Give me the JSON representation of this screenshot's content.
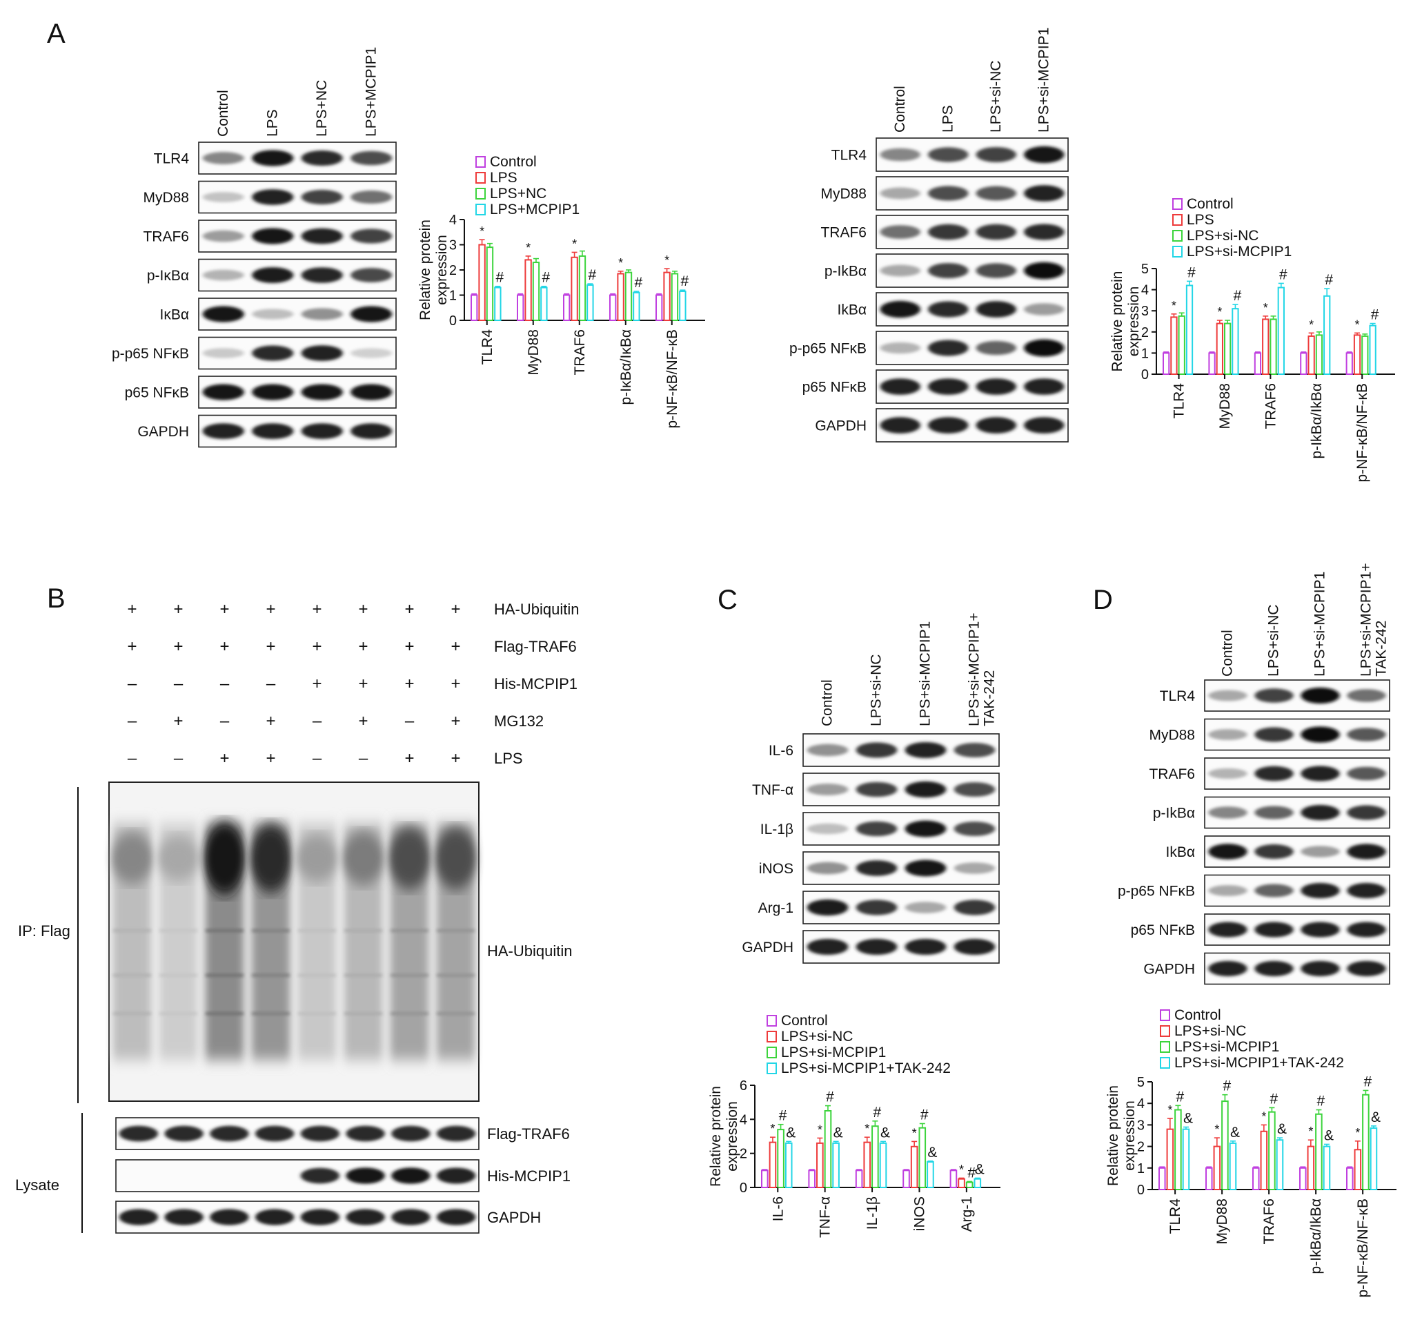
{
  "panels": {
    "A": "A",
    "B": "B",
    "C": "C",
    "D": "D"
  },
  "blot_A1": {
    "lanes": [
      "Control",
      "LPS",
      "LPS+NC",
      "LPS+MCPIP1"
    ],
    "rows": [
      "TLR4",
      "MyD88",
      "TRAF6",
      "p-IκBα",
      "IκBα",
      "p-p65 NFκB",
      "p65 NFκB",
      "GAPDH"
    ],
    "intensity": [
      [
        0.45,
        0.95,
        0.85,
        0.7
      ],
      [
        0.18,
        0.9,
        0.75,
        0.55
      ],
      [
        0.35,
        0.95,
        0.9,
        0.75
      ],
      [
        0.25,
        0.92,
        0.88,
        0.72
      ],
      [
        0.95,
        0.2,
        0.4,
        0.95
      ],
      [
        0.15,
        0.85,
        0.9,
        0.12
      ],
      [
        0.95,
        0.95,
        0.95,
        0.95
      ],
      [
        0.9,
        0.9,
        0.9,
        0.9
      ]
    ]
  },
  "blot_A2": {
    "lanes": [
      "Control",
      "LPS",
      "LPS+si-NC",
      "LPS+si-MCPIP1"
    ],
    "rows": [
      "TLR4",
      "MyD88",
      "TRAF6",
      "p-IkBα",
      "IkBα",
      "p-p65 NFκB",
      "p65 NFκB",
      "GAPDH"
    ],
    "intensity": [
      [
        0.45,
        0.7,
        0.75,
        0.95
      ],
      [
        0.3,
        0.7,
        0.65,
        0.9
      ],
      [
        0.55,
        0.8,
        0.8,
        0.85
      ],
      [
        0.3,
        0.75,
        0.7,
        0.98
      ],
      [
        0.95,
        0.85,
        0.9,
        0.35
      ],
      [
        0.25,
        0.85,
        0.6,
        1.0
      ],
      [
        0.9,
        0.9,
        0.9,
        0.9
      ],
      [
        0.9,
        0.9,
        0.9,
        0.9
      ]
    ]
  },
  "blot_B": {
    "row_labels": [
      "HA-Ubiquitin",
      "Flag-TRAF6",
      "His-MCPIP1",
      "MG132",
      "LPS"
    ],
    "signs": [
      [
        "+",
        "+",
        "+",
        "+",
        "+",
        "+",
        "+",
        "+"
      ],
      [
        "+",
        "+",
        "+",
        "+",
        "+",
        "+",
        "+",
        "+"
      ],
      [
        "–",
        "–",
        "–",
        "–",
        "+",
        "+",
        "+",
        "+"
      ],
      [
        "–",
        "+",
        "–",
        "+",
        "–",
        "+",
        "–",
        "+"
      ],
      [
        "–",
        "–",
        "+",
        "+",
        "–",
        "–",
        "+",
        "+"
      ]
    ],
    "ip_label": "IP: Flag",
    "ip_blot_label": "HA-Ubiquitin",
    "lysate_label": "Lysate",
    "smear_intensity": [
      0.45,
      0.3,
      0.95,
      0.85,
      0.35,
      0.5,
      0.7,
      0.7
    ],
    "lysate_rows": [
      "Flag-TRAF6",
      "His-MCPIP1",
      "GAPDH"
    ],
    "lysate_intensity": [
      [
        0.85,
        0.85,
        0.85,
        0.85,
        0.85,
        0.85,
        0.85,
        0.85
      ],
      [
        0,
        0,
        0,
        0,
        0.85,
        0.95,
        0.95,
        0.9
      ],
      [
        0.9,
        0.9,
        0.9,
        0.9,
        0.9,
        0.9,
        0.9,
        0.9
      ]
    ]
  },
  "blot_C": {
    "lanes": [
      "Control",
      "LPS+si-NC",
      "LPS+si-MCPIP1",
      "LPS+si-MCPIP1+\nTAK-242"
    ],
    "rows": [
      "IL-6",
      "TNF-α",
      "IL-1β",
      "iNOS",
      "Arg-1",
      "GAPDH"
    ],
    "intensity": [
      [
        0.4,
        0.8,
        0.9,
        0.7
      ],
      [
        0.35,
        0.75,
        0.92,
        0.7
      ],
      [
        0.2,
        0.75,
        0.95,
        0.7
      ],
      [
        0.4,
        0.85,
        0.95,
        0.3
      ],
      [
        0.92,
        0.8,
        0.3,
        0.8
      ],
      [
        0.9,
        0.9,
        0.9,
        0.9
      ]
    ]
  },
  "blot_D": {
    "lanes": [
      "Control",
      "LPS+si-NC",
      "LPS+si-MCPIP1",
      "LPS+si-MCPIP1+\nTAK-242"
    ],
    "rows": [
      "TLR4",
      "MyD88",
      "TRAF6",
      "p-IkBα",
      "IkBα",
      "p-p65 NFκB",
      "p65 NFκB",
      "GAPDH"
    ],
    "intensity": [
      [
        0.3,
        0.75,
        0.98,
        0.55
      ],
      [
        0.3,
        0.8,
        0.98,
        0.65
      ],
      [
        0.25,
        0.85,
        0.9,
        0.65
      ],
      [
        0.45,
        0.6,
        0.9,
        0.8
      ],
      [
        0.95,
        0.8,
        0.35,
        0.92
      ],
      [
        0.3,
        0.6,
        0.9,
        0.9
      ],
      [
        0.9,
        0.9,
        0.9,
        0.9
      ],
      [
        0.9,
        0.9,
        0.9,
        0.9
      ]
    ]
  },
  "chart_data": [
    {
      "type": "bar",
      "panel": "A",
      "title": "",
      "ylabel": "Relative protein\nexpression",
      "ylim": [
        0,
        4
      ],
      "yticks": [
        0,
        1,
        2,
        3,
        4
      ],
      "categories": [
        "TLR4",
        "MyD88",
        "TRAF6",
        "p-IκBα/IκBα",
        "p-NF-κB/NF-κB"
      ],
      "series": [
        {
          "name": "Control",
          "color": "#c040e0",
          "values": [
            1,
            1,
            1,
            1,
            1
          ],
          "errors": [
            0.05,
            0.05,
            0.05,
            0.05,
            0.05
          ],
          "marks": [
            "",
            "",
            "",
            "",
            ""
          ]
        },
        {
          "name": "LPS",
          "color": "#ee3b3b",
          "values": [
            3.0,
            2.4,
            2.5,
            1.85,
            1.9
          ],
          "errors": [
            0.2,
            0.15,
            0.2,
            0.1,
            0.15
          ],
          "marks": [
            "*",
            "*",
            "*",
            "*",
            "*"
          ]
        },
        {
          "name": "LPS+NC",
          "color": "#3cd43c",
          "values": [
            2.9,
            2.3,
            2.55,
            1.9,
            1.85
          ],
          "errors": [
            0.15,
            0.15,
            0.2,
            0.1,
            0.1
          ],
          "marks": [
            "",
            "",
            "",
            "",
            ""
          ]
        },
        {
          "name": "LPS+MCPIP1",
          "color": "#22d6e6",
          "values": [
            1.3,
            1.3,
            1.4,
            1.1,
            1.15
          ],
          "errors": [
            0.05,
            0.05,
            0.05,
            0.05,
            0.05
          ],
          "marks": [
            "#",
            "#",
            "#",
            "#",
            "#"
          ]
        }
      ]
    },
    {
      "type": "bar",
      "panel": "A",
      "title": "",
      "ylabel": "Relative protein\nexpression",
      "ylim": [
        0,
        5
      ],
      "yticks": [
        0,
        1,
        2,
        3,
        4,
        5
      ],
      "categories": [
        "TLR4",
        "MyD88",
        "TRAF6",
        "p-IkBα/IkBα",
        "p-NF-κB/NF-κB"
      ],
      "series": [
        {
          "name": "Control",
          "color": "#c040e0",
          "values": [
            1,
            1,
            1,
            1,
            1
          ],
          "errors": [
            0.05,
            0.05,
            0.05,
            0.05,
            0.05
          ],
          "marks": [
            "",
            "",
            "",
            "",
            ""
          ]
        },
        {
          "name": "LPS",
          "color": "#ee3b3b",
          "values": [
            2.7,
            2.4,
            2.6,
            1.8,
            1.85
          ],
          "errors": [
            0.15,
            0.15,
            0.15,
            0.15,
            0.1
          ],
          "marks": [
            "*",
            "*",
            "*",
            "*",
            "*"
          ]
        },
        {
          "name": "LPS+si-NC",
          "color": "#3cd43c",
          "values": [
            2.75,
            2.4,
            2.6,
            1.85,
            1.8
          ],
          "errors": [
            0.15,
            0.15,
            0.15,
            0.15,
            0.1
          ],
          "marks": [
            "",
            "",
            "",
            "",
            ""
          ]
        },
        {
          "name": "LPS+si-MCPIP1",
          "color": "#22d6e6",
          "values": [
            4.2,
            3.1,
            4.1,
            3.7,
            2.3
          ],
          "errors": [
            0.2,
            0.2,
            0.2,
            0.35,
            0.1
          ],
          "marks": [
            "#",
            "#",
            "#",
            "#",
            "#"
          ]
        }
      ]
    },
    {
      "type": "bar",
      "panel": "C",
      "title": "",
      "ylabel": "Relative protein\nexpression",
      "ylim": [
        0,
        6
      ],
      "yticks": [
        0,
        2,
        4,
        6
      ],
      "categories": [
        "IL-6",
        "TNF-α",
        "IL-1β",
        "iNOS",
        "Arg-1"
      ],
      "series": [
        {
          "name": "Control",
          "color": "#c040e0",
          "values": [
            1,
            1,
            1,
            1,
            1
          ],
          "errors": [
            0.05,
            0.05,
            0.05,
            0.05,
            0.05
          ],
          "marks": [
            "",
            "",
            "",
            "",
            ""
          ]
        },
        {
          "name": "LPS+si-NC",
          "color": "#ee3b3b",
          "values": [
            2.65,
            2.6,
            2.65,
            2.4,
            0.5
          ],
          "errors": [
            0.3,
            0.3,
            0.3,
            0.3,
            0.05
          ],
          "marks": [
            "*",
            "*",
            "*",
            "*",
            "*"
          ]
        },
        {
          "name": "LPS+si-MCPIP1",
          "color": "#3cd43c",
          "values": [
            3.4,
            4.5,
            3.6,
            3.5,
            0.3
          ],
          "errors": [
            0.3,
            0.3,
            0.3,
            0.25,
            0.05
          ],
          "marks": [
            "#",
            "#",
            "#",
            "#",
            "#"
          ]
        },
        {
          "name": "LPS+si-MCPIP1+TAK-242",
          "color": "#22d6e6",
          "values": [
            2.6,
            2.6,
            2.6,
            1.5,
            0.5
          ],
          "errors": [
            0.1,
            0.1,
            0.1,
            0.05,
            0.05
          ],
          "marks": [
            "&",
            "&",
            "&",
            "&",
            "&"
          ]
        }
      ]
    },
    {
      "type": "bar",
      "panel": "D",
      "title": "",
      "ylabel": "Relative protein\nexpression",
      "ylim": [
        0,
        5
      ],
      "yticks": [
        0,
        1,
        2,
        3,
        4,
        5
      ],
      "categories": [
        "TLR4",
        "MyD88",
        "TRAF6",
        "p-IkBα/IkBα",
        "p-NF-κB/NF-κB"
      ],
      "series": [
        {
          "name": "Control",
          "color": "#c040e0",
          "values": [
            1,
            1,
            1,
            1,
            1
          ],
          "errors": [
            0.05,
            0.05,
            0.05,
            0.05,
            0.05
          ],
          "marks": [
            "",
            "",
            "",
            "",
            ""
          ]
        },
        {
          "name": "LPS+si-NC",
          "color": "#ee3b3b",
          "values": [
            2.8,
            2.0,
            2.7,
            2.0,
            1.85
          ],
          "errors": [
            0.5,
            0.4,
            0.3,
            0.3,
            0.4
          ],
          "marks": [
            "*",
            "*",
            "*",
            "*",
            "*"
          ]
        },
        {
          "name": "LPS+si-MCPIP1",
          "color": "#3cd43c",
          "values": [
            3.7,
            4.1,
            3.6,
            3.5,
            4.4
          ],
          "errors": [
            0.2,
            0.3,
            0.2,
            0.2,
            0.2
          ],
          "marks": [
            "#",
            "#",
            "#",
            "#",
            "#"
          ]
        },
        {
          "name": "LPS+si-MCPIP1+TAK-242",
          "color": "#22d6e6",
          "values": [
            2.8,
            2.15,
            2.3,
            2.0,
            2.85
          ],
          "errors": [
            0.1,
            0.1,
            0.1,
            0.1,
            0.1
          ],
          "marks": [
            "&",
            "&",
            "&",
            "&",
            "&"
          ]
        }
      ]
    }
  ]
}
